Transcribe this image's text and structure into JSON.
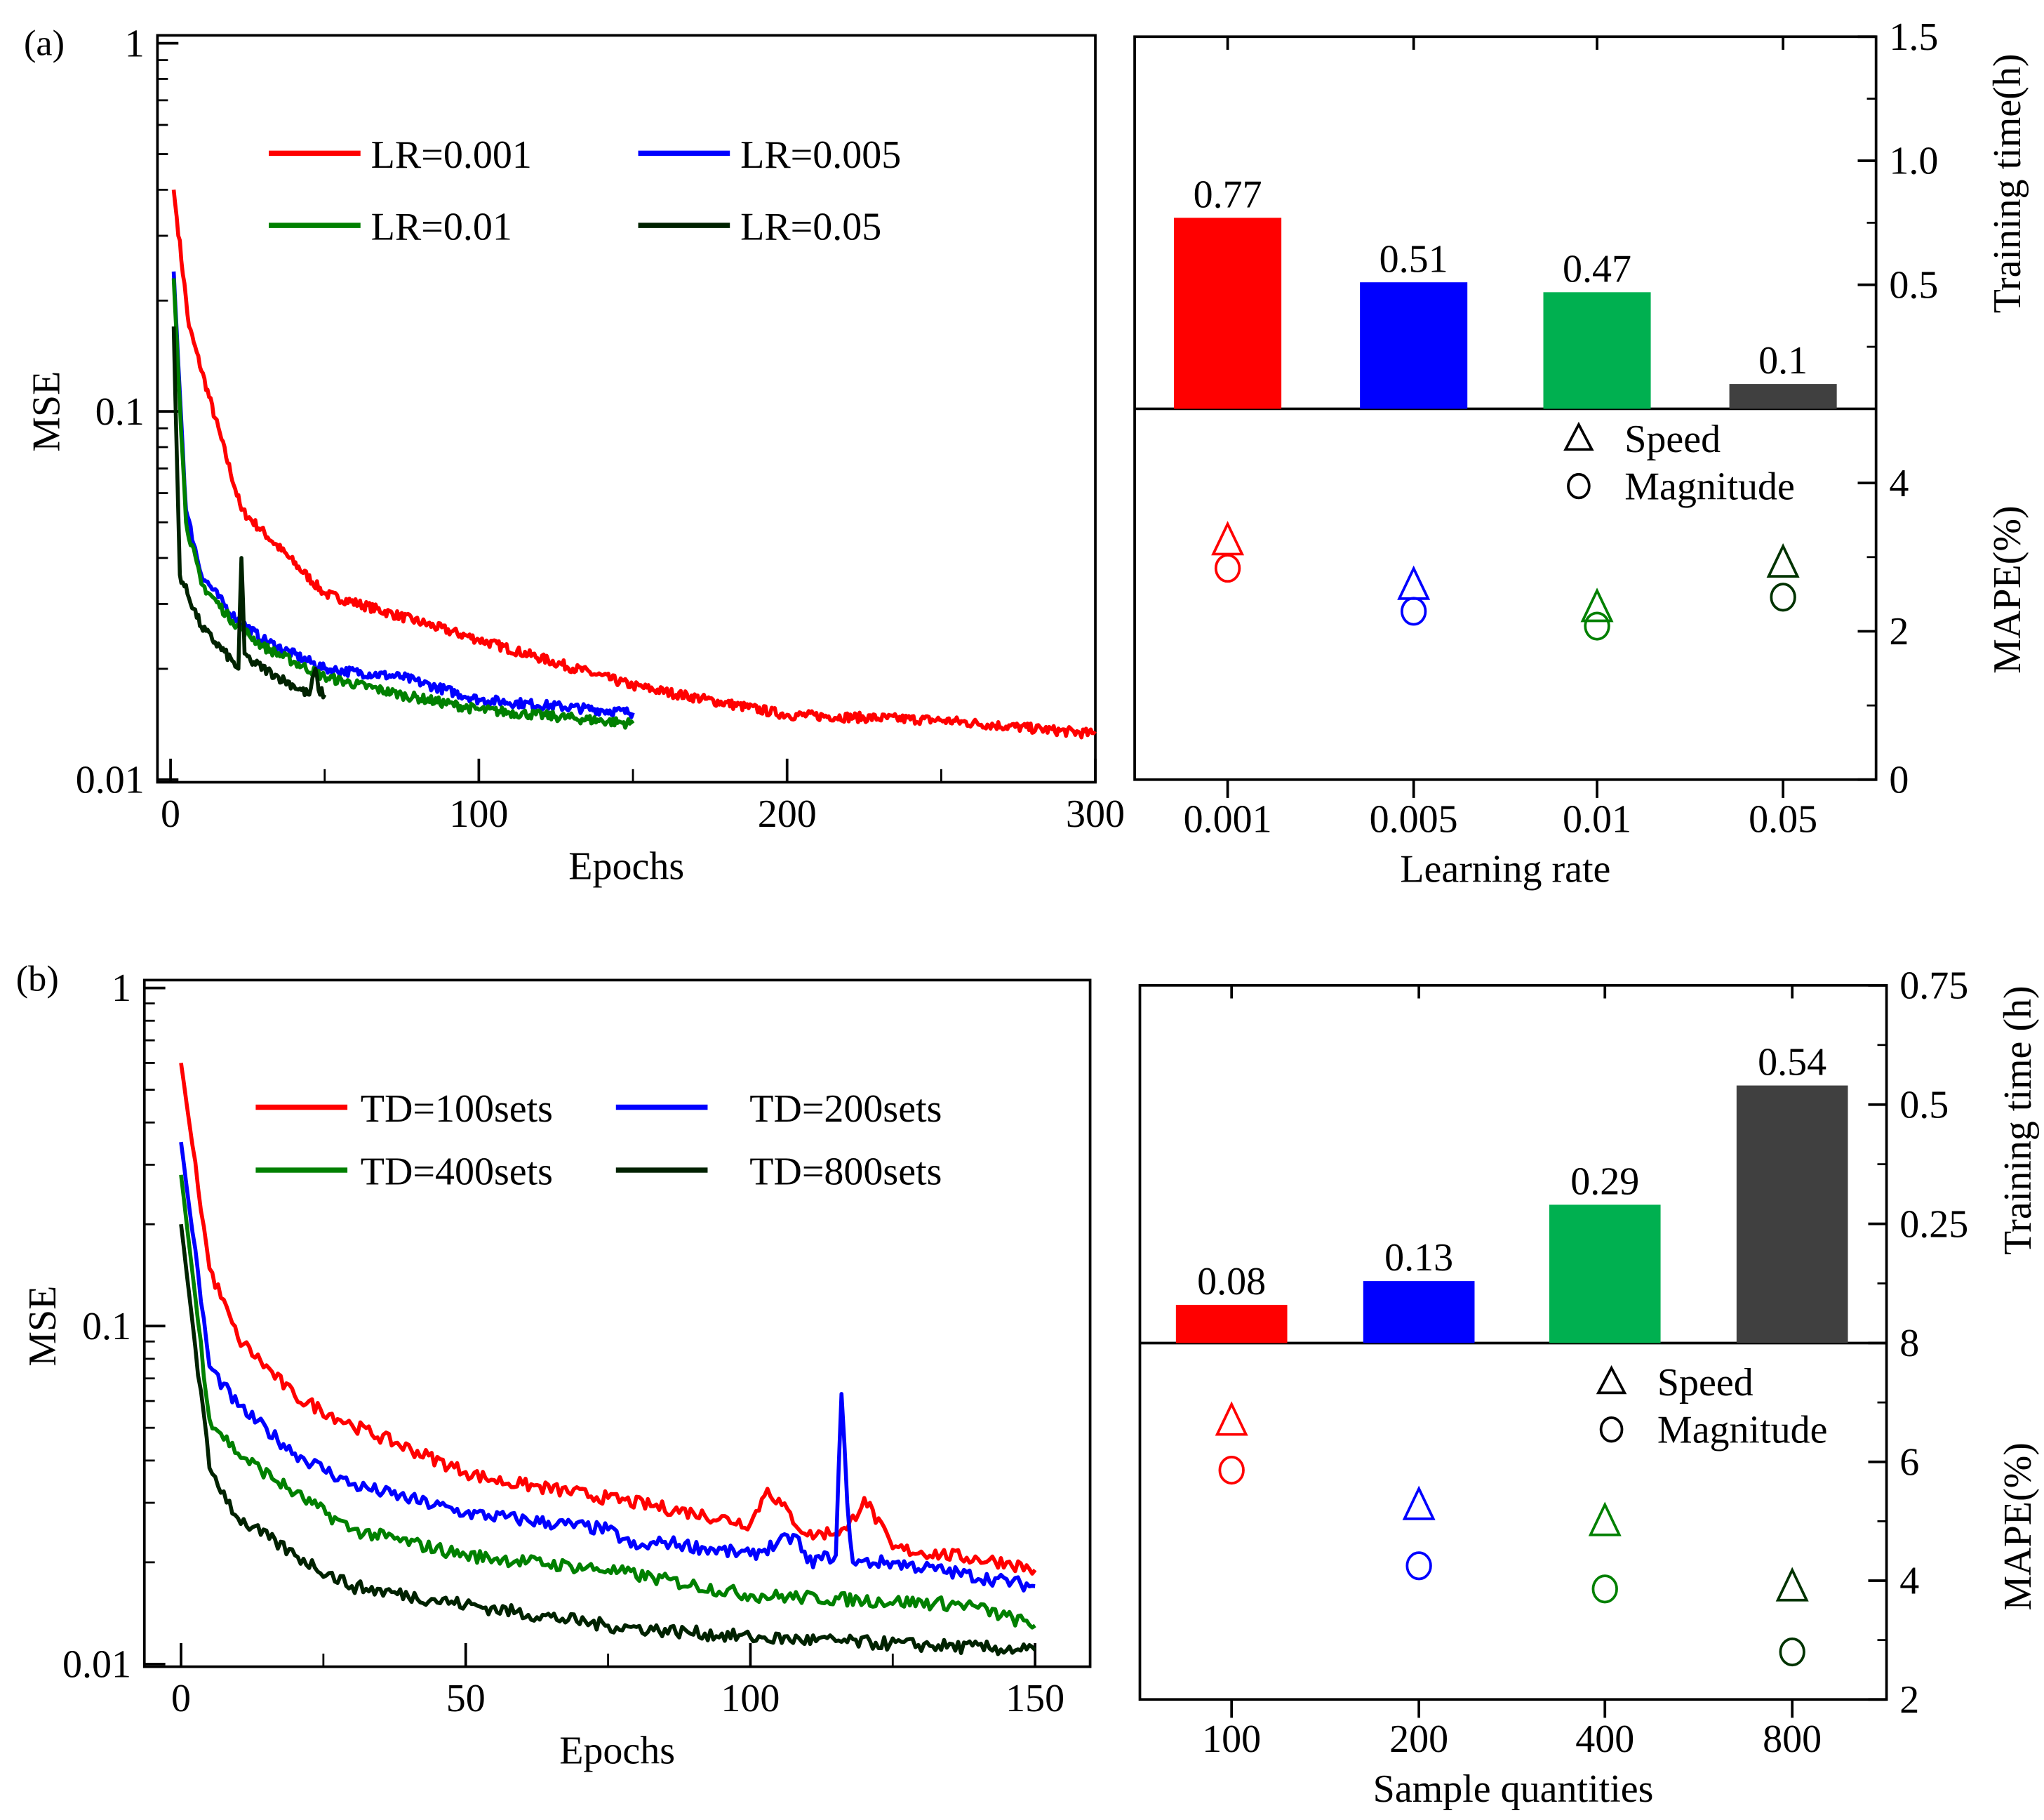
{
  "chart_data": [
    {
      "panel": "(a)",
      "type": "line",
      "title": "",
      "xlabel": "Epochs",
      "ylabel": "MSE",
      "yscale": "log",
      "ylim": [
        0.01,
        1
      ],
      "xlim": [
        0,
        300
      ],
      "xticks": [
        "0",
        "100",
        "200",
        "300"
      ],
      "yticks": [
        "1",
        "0.1",
        "0.01"
      ],
      "legend_position": "top",
      "series": [
        {
          "name": "LR=0.001",
          "color": "#ff0000",
          "epochs": [
            1,
            6,
            23,
            50,
            100,
            150,
            200,
            250,
            300
          ],
          "mse": [
            0.4,
            0.17,
            0.054,
            0.032,
            0.024,
            0.018,
            0.015,
            0.0145,
            0.0133
          ]
        },
        {
          "name": "LR=0.005",
          "color": "#0000ff",
          "epochs": [
            1,
            5,
            10,
            20,
            30,
            50,
            75,
            100,
            150
          ],
          "mse": [
            0.24,
            0.054,
            0.036,
            0.028,
            0.024,
            0.02,
            0.019,
            0.0165,
            0.0152
          ]
        },
        {
          "name": "LR=0.01",
          "color": "#008000",
          "epochs": [
            1,
            5,
            10,
            20,
            30,
            50,
            75,
            100,
            150
          ],
          "mse": [
            0.23,
            0.05,
            0.034,
            0.027,
            0.023,
            0.019,
            0.017,
            0.0155,
            0.0142
          ]
        },
        {
          "name": "LR=0.05",
          "color": "#002200",
          "epochs": [
            1,
            3,
            10,
            20,
            22,
            23,
            24,
            26,
            35,
            40,
            45,
            47,
            48,
            50
          ],
          "mse": [
            0.17,
            0.036,
            0.026,
            0.021,
            0.02,
            0.04,
            0.022,
            0.021,
            0.019,
            0.018,
            0.017,
            0.02,
            0.0175,
            0.017
          ]
        }
      ]
    },
    {
      "panel": "(a)-right",
      "type": "bar",
      "xlabel": "Learning rate",
      "categories": [
        "0.001",
        "0.005",
        "0.01",
        "0.05"
      ],
      "bar_colors": [
        "#ff0000",
        "#0000ff",
        "#00b050",
        "#404040"
      ],
      "training_time": {
        "ylabel": "Training time(h)",
        "values": [
          0.77,
          0.51,
          0.47,
          0.1
        ],
        "labels": [
          "0.77",
          "0.51",
          "0.47",
          "0.1"
        ],
        "ylim": [
          0,
          1.5
        ],
        "yticks": [
          "1.5",
          "1.0",
          "0.5"
        ]
      },
      "mape": {
        "ylabel": "MAPE(%)",
        "ylim": [
          0,
          5
        ],
        "yticks": [
          "4",
          "2",
          "0"
        ],
        "marker_colors": [
          "#ff0000",
          "#0000ff",
          "#008000",
          "#003300"
        ],
        "speed": [
          3.2,
          2.6,
          2.3,
          2.9
        ],
        "magnitude": [
          2.85,
          2.27,
          2.07,
          2.46
        ],
        "legend": {
          "speed": "Speed",
          "magnitude": "Magnitude"
        }
      }
    },
    {
      "panel": "(b)",
      "type": "line",
      "xlabel": "Epochs",
      "ylabel": "MSE",
      "yscale": "log",
      "ylim": [
        0.01,
        1
      ],
      "xlim": [
        0,
        150
      ],
      "xticks": [
        "0",
        "50",
        "100",
        "150"
      ],
      "yticks": [
        "1",
        "0.1",
        "0.01"
      ],
      "legend_position": "top",
      "series": [
        {
          "name": "TD=100sets",
          "color": "#ff0000",
          "epochs": [
            0,
            5,
            10,
            20,
            30,
            50,
            55,
            60,
            75,
            90,
            100,
            103,
            110,
            117,
            120,
            125,
            145,
            150
          ],
          "mse": [
            0.6,
            0.148,
            0.092,
            0.062,
            0.051,
            0.037,
            0.035,
            0.034,
            0.031,
            0.028,
            0.026,
            0.033,
            0.024,
            0.025,
            0.031,
            0.022,
            0.02,
            0.019
          ]
        },
        {
          "name": "TD=200sets",
          "color": "#0000ff",
          "epochs": [
            0,
            5,
            10,
            20,
            30,
            50,
            75,
            80,
            85,
            100,
            108,
            110,
            115,
            116,
            117,
            118,
            125,
            150
          ],
          "mse": [
            0.35,
            0.076,
            0.058,
            0.042,
            0.034,
            0.028,
            0.025,
            0.022,
            0.023,
            0.021,
            0.024,
            0.02,
            0.021,
            0.063,
            0.03,
            0.02,
            0.02,
            0.017
          ]
        },
        {
          "name": "TD=400sets",
          "color": "#008000",
          "epochs": [
            0,
            5,
            10,
            20,
            30,
            50,
            75,
            100,
            138,
            150
          ],
          "mse": [
            0.28,
            0.053,
            0.042,
            0.032,
            0.025,
            0.021,
            0.019,
            0.016,
            0.015,
            0.013
          ]
        },
        {
          "name": "TD=800sets",
          "color": "#002200",
          "epochs": [
            0,
            5,
            10,
            20,
            30,
            50,
            75,
            100,
            150
          ],
          "mse": [
            0.2,
            0.038,
            0.027,
            0.021,
            0.017,
            0.015,
            0.013,
            0.012,
            0.011
          ]
        }
      ]
    },
    {
      "panel": "(b)-right",
      "type": "bar",
      "xlabel": "Sample quantities",
      "categories": [
        "100",
        "200",
        "400",
        "800"
      ],
      "bar_colors": [
        "#ff0000",
        "#0000ff",
        "#00b050",
        "#404040"
      ],
      "training_time": {
        "ylabel": "Training time (h)",
        "values": [
          0.08,
          0.13,
          0.29,
          0.54
        ],
        "labels": [
          "0.08",
          "0.13",
          "0.29",
          "0.54"
        ],
        "ylim": [
          0,
          0.75
        ],
        "yticks": [
          "0.75",
          "0.5",
          "0.25"
        ]
      },
      "mape": {
        "ylabel": "MAPE(%)",
        "ylim": [
          2,
          8
        ],
        "yticks": [
          "8",
          "6",
          "4",
          "2"
        ],
        "marker_colors": [
          "#ff0000",
          "#0000ff",
          "#008000",
          "#003300"
        ],
        "speed": [
          6.66,
          5.24,
          4.97,
          3.87
        ],
        "magnitude": [
          5.86,
          4.25,
          3.86,
          2.8
        ],
        "legend": {
          "speed": "Speed",
          "magnitude": "Magnitude"
        }
      }
    }
  ]
}
